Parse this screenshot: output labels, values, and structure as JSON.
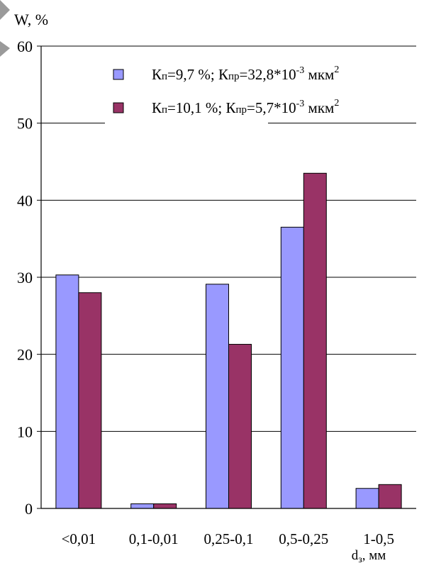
{
  "chart_data": {
    "type": "bar",
    "ylabel": "W, %",
    "xlabel": "dз, мм",
    "ylim": [
      0,
      60
    ],
    "yticks": [
      0,
      10,
      20,
      30,
      40,
      50,
      60
    ],
    "grid": true,
    "legend_position": "top-right",
    "categories": [
      "<0,01",
      "0,1-0,01",
      "0,25-0,1",
      "0,5-0,25",
      "1-0,5"
    ],
    "series": [
      {
        "name": "Кп=9,7 %; Кпр=32,8*10-3 мкм2",
        "color": "#9999ff",
        "values": [
          30.3,
          0.6,
          29.1,
          36.5,
          2.6
        ]
      },
      {
        "name": "Кп=10,1 %; Кпр=5,7*10-3 мкм2",
        "color": "#993366",
        "values": [
          28.0,
          0.6,
          21.3,
          43.5,
          3.1
        ]
      }
    ]
  }
}
